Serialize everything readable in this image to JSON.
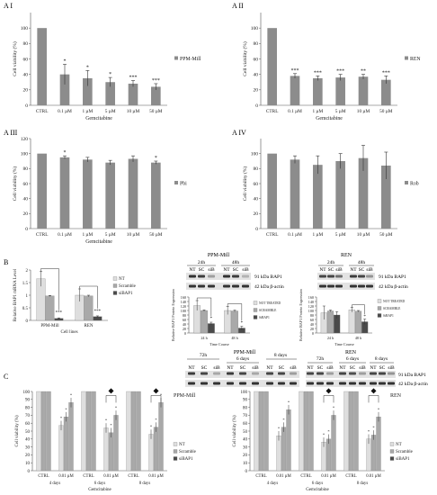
{
  "colors": {
    "bar": "#8c8c8c",
    "axis": "#555555",
    "text": "#222222",
    "light": "#dedede",
    "mid": "#a9a9a9",
    "dark": "#4a4a4a",
    "blot_bg": "#e3e3e3",
    "band": "#1e1e1e"
  },
  "panel_labels": {
    "ai": "A I",
    "aii": "A II",
    "aiii": "A III",
    "aiv": "A IV",
    "b": "B",
    "c": "C"
  },
  "a_common": {
    "categories": [
      "CTRL",
      "0.1 µM",
      "1 µM",
      "5 µM",
      "10 µM",
      "50 µM"
    ],
    "xlabel": "Gemcitabine",
    "ylabel": "Cell viability (%)",
    "ylim": [
      0,
      120
    ],
    "yticks": [
      "0",
      "20",
      "40",
      "60",
      "80",
      "100"
    ]
  },
  "a_iii_yticks": [
    "0",
    "20",
    "40",
    "60",
    "80",
    "100",
    "120"
  ],
  "western": {
    "ppm_title": "PPM-Mill",
    "ren_title": "REN",
    "t24": "24h",
    "t48": "48h",
    "t72": "72h",
    "d6": "6 days",
    "d8": "8 days",
    "nt": "NT",
    "sc": "SC",
    "sib": "siB",
    "bap1": "91 kDa BAP1",
    "actin": "42 kDa β-actin"
  },
  "chart_data": [
    {
      "id": "AI",
      "type": "bar",
      "legend": "PPM-Mill",
      "categories": [
        "CTRL",
        "0.1 µM",
        "1 µM",
        "5 µM",
        "10 µM",
        "50 µM"
      ],
      "values": [
        100,
        40,
        35,
        30,
        28,
        24
      ],
      "errors": [
        0,
        13,
        10,
        6,
        4,
        4
      ],
      "sig": [
        "",
        "*",
        "*",
        "*",
        "***",
        "***"
      ],
      "xlabel": "Gemcitabine",
      "ylabel": "Cell viability (%)",
      "ylim": [
        0,
        120
      ]
    },
    {
      "id": "AII",
      "type": "bar",
      "legend": "REN",
      "categories": [
        "CTRL",
        "0.1 µM",
        "1 µM",
        "5 µM",
        "10 µM",
        "50 µM"
      ],
      "values": [
        100,
        38,
        35,
        36,
        37,
        33
      ],
      "errors": [
        0,
        3,
        3,
        4,
        3,
        5
      ],
      "sig": [
        "",
        "***",
        "***",
        "***",
        "**",
        "***"
      ],
      "xlabel": "Gemcitabine",
      "ylabel": "Cell viability (%)",
      "ylim": [
        0,
        120
      ]
    },
    {
      "id": "AIII",
      "type": "bar",
      "legend": "Pbi",
      "categories": [
        "CTRL",
        "0.1 µM",
        "1 µM",
        "5 µM",
        "10 µM",
        "50 µM"
      ],
      "values": [
        100,
        95,
        92,
        88,
        93,
        88
      ],
      "errors": [
        0,
        2,
        3,
        3,
        4,
        2
      ],
      "sig": [
        "",
        "*",
        "",
        "",
        "",
        "*"
      ],
      "xlabel": "Gemcitabine",
      "ylabel": "Cell viability (%)",
      "ylim": [
        0,
        120
      ]
    },
    {
      "id": "AIV",
      "type": "bar",
      "legend": "Rob",
      "categories": [
        "CTRL",
        "0.1 µM",
        "1 µM",
        "5 µM",
        "10 µM",
        "50 µM"
      ],
      "values": [
        100,
        92,
        85,
        90,
        94,
        84
      ],
      "errors": [
        0,
        5,
        12,
        10,
        17,
        18
      ],
      "sig": [
        "",
        "",
        "",
        "",
        "",
        ""
      ],
      "xlabel": "",
      "ylabel": "Cell viability (%)",
      "ylim": [
        0,
        120
      ]
    },
    {
      "id": "B1",
      "type": "bar",
      "categories": [
        "PPM-Mill",
        "REN"
      ],
      "xlabel": "Cell lines",
      "ylabel": "Relative BAP1 mRNA Level",
      "ylim": [
        0,
        2
      ],
      "series": [
        {
          "name": "NT",
          "values": [
            1.65,
            1.0
          ],
          "errors": [
            0.3,
            0.25
          ]
        },
        {
          "name": "Scramble",
          "values": [
            0.97,
            0.97
          ],
          "errors": [
            0.02,
            0.03
          ]
        },
        {
          "name": "siBAP1",
          "values": [
            0.08,
            0.15
          ],
          "errors": [
            0.02,
            0.03
          ]
        }
      ],
      "sig": [
        "***",
        "***"
      ]
    },
    {
      "id": "B2",
      "type": "bar",
      "title": "PPM-Mill",
      "categories": [
        "24 h",
        "48 h"
      ],
      "xlabel": "Time Course",
      "ylabel": "Relative BAP1 Protein Expression",
      "ylim": [
        0,
        160
      ],
      "series": [
        {
          "name": "NOT TREATED",
          "values": [
            122,
            100
          ],
          "errors": [
            22,
            18
          ]
        },
        {
          "name": "SCRAMBLE",
          "values": [
            100,
            98
          ],
          "errors": [
            3,
            4
          ]
        },
        {
          "name": "SiBAP1",
          "values": [
            42,
            22
          ],
          "errors": [
            6,
            8
          ]
        }
      ],
      "sig": [
        "*",
        "*"
      ]
    },
    {
      "id": "B3",
      "type": "bar",
      "title": "REN",
      "categories": [
        "24 h",
        "48 h"
      ],
      "xlabel": "Time Course",
      "ylabel": "Relative BAP1 Protein Expression",
      "ylim": [
        0,
        160
      ],
      "series": [
        {
          "name": "NOT TREATED",
          "values": [
            90,
            103
          ],
          "errors": [
            30,
            10
          ]
        },
        {
          "name": "SCRAMBLE",
          "values": [
            98,
            97
          ],
          "errors": [
            4,
            3
          ]
        },
        {
          "name": "SiBAP1",
          "values": [
            80,
            50
          ],
          "errors": [
            15,
            12
          ]
        }
      ],
      "sig": [
        "",
        "*"
      ]
    },
    {
      "id": "C1",
      "type": "bar",
      "legend_title": "PPM-Mill",
      "groups": [
        "4 days",
        "6 days",
        "8 days"
      ],
      "subcategories": [
        "CTRL",
        "0.01 µM"
      ],
      "xlabel": "Gemcitabine",
      "ylabel": "Cell viability (%)",
      "ylim": [
        0,
        100
      ],
      "series": [
        {
          "name": "NT",
          "values": [
            100,
            57,
            100,
            54,
            100,
            46
          ]
        },
        {
          "name": "Scramble",
          "values": [
            100,
            68,
            100,
            48,
            100,
            55
          ]
        },
        {
          "name": "siBAP1",
          "values": [
            100,
            86,
            100,
            70,
            100,
            86
          ]
        }
      ]
    },
    {
      "id": "C2",
      "type": "bar",
      "legend_title": "REN",
      "groups": [
        "4 days",
        "6 days",
        "8 days"
      ],
      "subcategories": [
        "CTRL",
        "0.01 µM"
      ],
      "xlabel": "Gemcitabine",
      "ylabel": "Cell viability (%)",
      "ylim": [
        0,
        100
      ],
      "series": [
        {
          "name": "NT",
          "values": [
            100,
            44,
            100,
            36,
            100,
            40
          ]
        },
        {
          "name": "Scramble",
          "values": [
            100,
            55,
            100,
            40,
            100,
            45
          ]
        },
        {
          "name": "siBAP1",
          "values": [
            100,
            77,
            100,
            70,
            100,
            68
          ]
        }
      ]
    }
  ]
}
